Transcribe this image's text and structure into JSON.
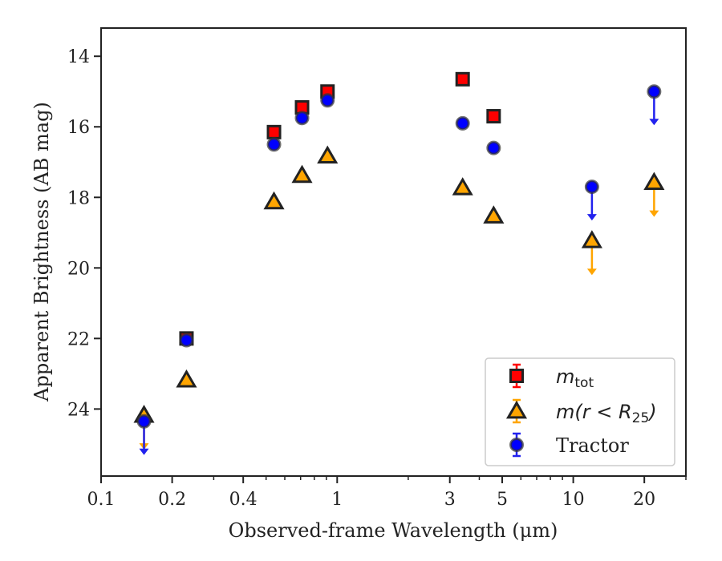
{
  "chart_data": {
    "type": "scatter",
    "xscale": "log",
    "xlim": [
      0.1,
      30
    ],
    "ylim": [
      25.9,
      13.2
    ],
    "y_inverted": true,
    "xlabel": "Observed-frame Wavelength (μm)",
    "ylabel": "Apparent Brightness (AB mag)",
    "xticks": [
      {
        "value": 0.1,
        "label": "0.1"
      },
      {
        "value": 0.2,
        "label": "0.2"
      },
      {
        "value": 0.4,
        "label": "0.4"
      },
      {
        "value": 1,
        "label": "1"
      },
      {
        "value": 3,
        "label": "3"
      },
      {
        "value": 5,
        "label": "5"
      },
      {
        "value": 10,
        "label": "10"
      },
      {
        "value": 20,
        "label": "20"
      }
    ],
    "yticks": [
      {
        "value": 14,
        "label": "14"
      },
      {
        "value": 16,
        "label": "16"
      },
      {
        "value": 18,
        "label": "18"
      },
      {
        "value": 20,
        "label": "20"
      },
      {
        "value": 22,
        "label": "22"
      },
      {
        "value": 24,
        "label": "24"
      }
    ],
    "legend_position": "lower right",
    "series": [
      {
        "name_base": "m",
        "name_sub": "tot",
        "marker": "square",
        "color": "#ff0000",
        "points": [
          {
            "x": 0.23,
            "y": 22.0
          },
          {
            "x": 0.54,
            "y": 16.15
          },
          {
            "x": 0.71,
            "y": 15.45
          },
          {
            "x": 0.91,
            "y": 15.0
          },
          {
            "x": 3.4,
            "y": 14.65
          },
          {
            "x": 4.6,
            "y": 15.7
          }
        ]
      },
      {
        "name_base": "m(r < R",
        "name_sub": "25",
        "name_end": ")",
        "marker": "triangle",
        "color": "#ffa500",
        "points": [
          {
            "x": 0.152,
            "y": 24.2,
            "upper_limit": true
          },
          {
            "x": 0.23,
            "y": 23.2
          },
          {
            "x": 0.54,
            "y": 18.15
          },
          {
            "x": 0.71,
            "y": 17.4
          },
          {
            "x": 0.91,
            "y": 16.85
          },
          {
            "x": 3.4,
            "y": 17.75
          },
          {
            "x": 4.6,
            "y": 18.55
          },
          {
            "x": 12.0,
            "y": 19.25,
            "upper_limit": true
          },
          {
            "x": 22.0,
            "y": 17.6,
            "upper_limit": true
          }
        ]
      },
      {
        "name": "Tractor",
        "marker": "circle",
        "color": "#0000ff",
        "points": [
          {
            "x": 0.152,
            "y": 24.35,
            "upper_limit": true
          },
          {
            "x": 0.23,
            "y": 22.05
          },
          {
            "x": 0.54,
            "y": 16.5
          },
          {
            "x": 0.71,
            "y": 15.75
          },
          {
            "x": 0.91,
            "y": 15.25
          },
          {
            "x": 3.4,
            "y": 15.9
          },
          {
            "x": 4.6,
            "y": 16.6
          },
          {
            "x": 12.0,
            "y": 17.7,
            "upper_limit": true
          },
          {
            "x": 22.0,
            "y": 15.0,
            "upper_limit": true
          }
        ]
      }
    ]
  }
}
